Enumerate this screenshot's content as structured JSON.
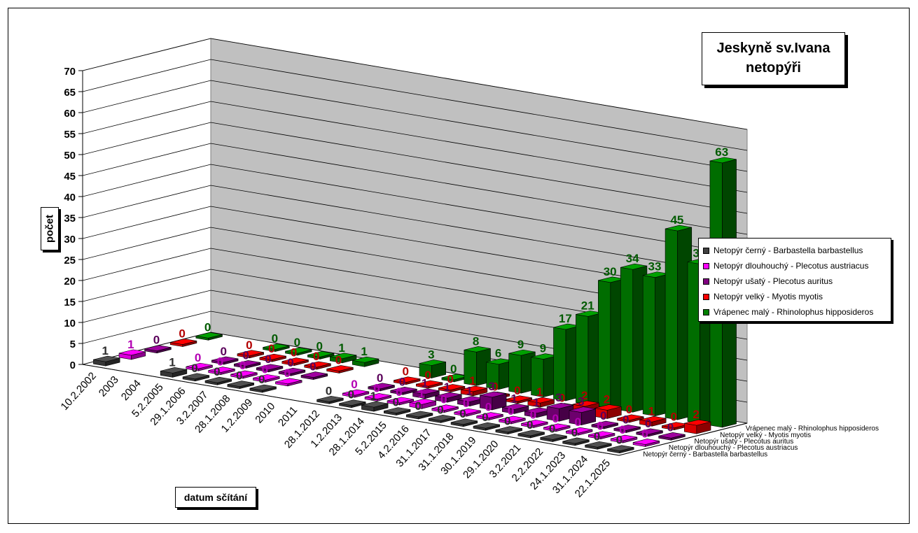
{
  "title_line1": "Jeskyně sv.Ivana",
  "title_line2": "netopýři",
  "ylabel": "počet",
  "xlabel": "datum sčítání",
  "chart_data": {
    "type": "bar",
    "title": "Jeskyně sv.Ivana netopýři",
    "xlabel": "datum sčítání",
    "ylabel": "počet",
    "ylim": [
      0,
      70
    ],
    "yticks": [
      0,
      5,
      10,
      15,
      20,
      25,
      30,
      35,
      40,
      45,
      50,
      55,
      60,
      65,
      70
    ],
    "grid": true,
    "legend_position": "right",
    "categories": [
      "10.2.2002",
      "2003",
      "2004",
      "5.2.2005",
      "29.1.2006",
      "3.2.2007",
      "28.1.2008",
      "1.2.2009",
      "2010",
      "2011",
      "28.1.2012",
      "1.2.2013",
      "28.1.2014",
      "5.2.2015",
      "4.2.2016",
      "31.1.2017",
      "31.1.2018",
      "30.1.2019",
      "29.1.2020",
      "3.2.2021",
      "2.2.2022",
      "24.1.2023",
      "31.1.2024",
      "22.1.2025"
    ],
    "series": [
      {
        "name": "Netopýr černý - Barbastella barbastellus",
        "color": "#404040",
        "values": [
          1,
          null,
          null,
          1,
          0,
          0,
          0,
          0,
          null,
          null,
          0,
          0,
          1,
          0,
          0,
          0,
          0,
          0,
          0,
          0,
          0,
          0,
          0,
          0
        ]
      },
      {
        "name": "Netopýr dlouhouchý - Plecotus austriacus",
        "color": "#ff00ff",
        "values": [
          1,
          null,
          null,
          0,
          0,
          0,
          0,
          0,
          null,
          null,
          0,
          0,
          0,
          1,
          0,
          0,
          0,
          0,
          0,
          0,
          0,
          0,
          0,
          0
        ]
      },
      {
        "name": "Netopýr ušatý - Plecotus auritus",
        "color": "#800080",
        "values": [
          0,
          null,
          null,
          0,
          0,
          0,
          0,
          0,
          null,
          null,
          0,
          0,
          1,
          1,
          1,
          3,
          1,
          1,
          3,
          3,
          0,
          0,
          0,
          0
        ]
      },
      {
        "name": "Netopýr velký - Myotis myotis",
        "color": "#ff0000",
        "values": [
          0,
          null,
          null,
          0,
          0,
          0,
          0,
          0,
          null,
          null,
          0,
          0,
          0,
          1,
          0,
          0,
          1,
          0,
          2,
          2,
          0,
          1,
          0,
          2
        ]
      },
      {
        "name": "Vrápenec malý - Rhinolophus hipposideros",
        "color": "#008000",
        "values": [
          0,
          null,
          null,
          0,
          0,
          0,
          1,
          1,
          null,
          null,
          3,
          0,
          8,
          6,
          9,
          9,
          17,
          21,
          30,
          34,
          33,
          45,
          38,
          63
        ]
      }
    ]
  }
}
